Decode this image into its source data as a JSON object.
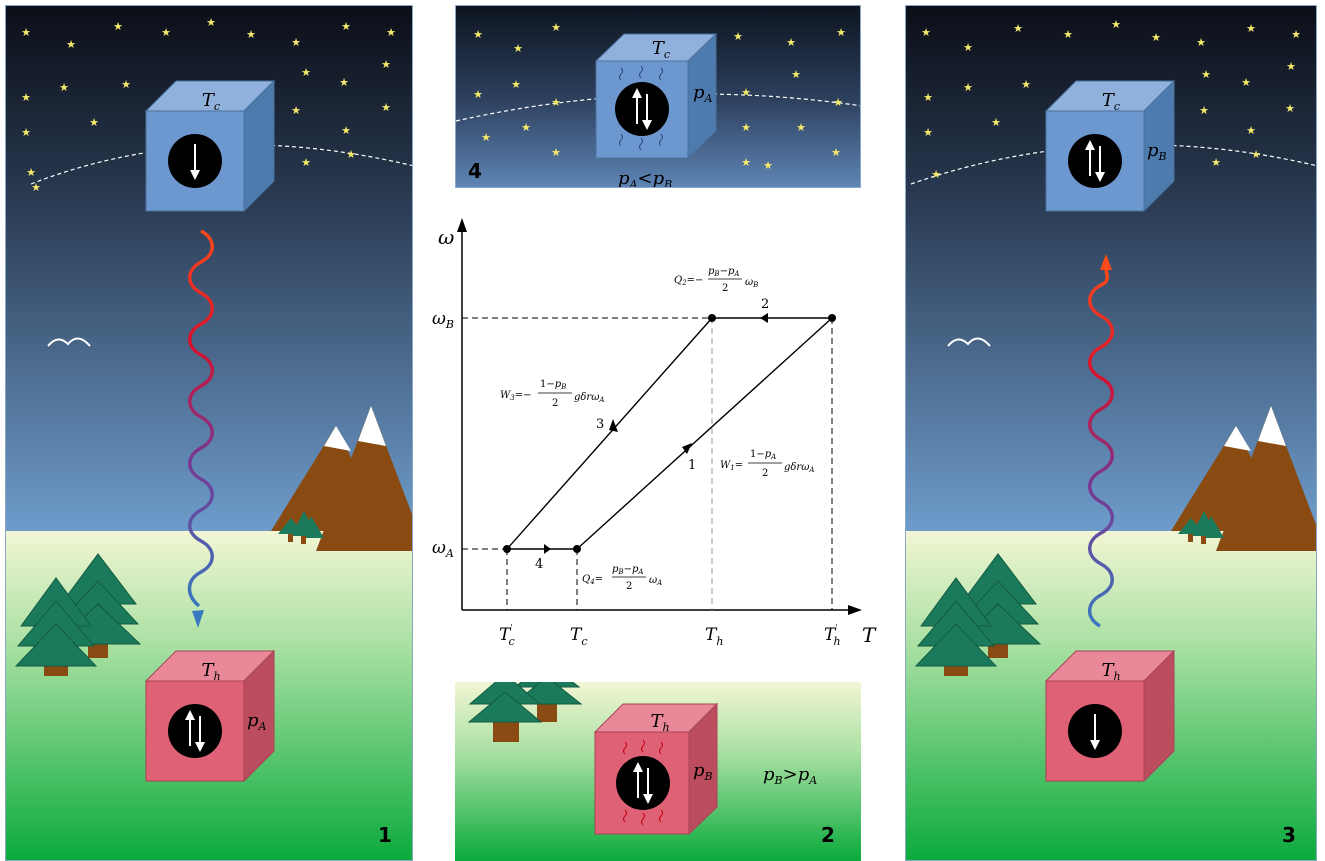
{
  "panels": {
    "p1": {
      "number": "1",
      "top_box": "T",
      "top_box_sub": "c",
      "bottom_box": "T",
      "bottom_box_sub": "h",
      "side_p": "p",
      "side_p_sub": "A"
    },
    "p2": {
      "number": "2",
      "box": "T",
      "box_sub": "h",
      "side_p": "p",
      "side_p_sub": "B",
      "relation_lhs": "p",
      "relation_lhs_sub": "B",
      "relation_op": ">",
      "relation_rhs": "p",
      "relation_rhs_sub": "A"
    },
    "p3": {
      "number": "3",
      "top_box": "T",
      "top_box_sub": "c",
      "bottom_box": "T",
      "bottom_box_sub": "h",
      "side_p": "p",
      "side_p_sub": "B"
    },
    "p4": {
      "number": "4",
      "box": "T",
      "box_sub": "c",
      "side_p": "p",
      "side_p_sub": "A",
      "relation_lhs": "p",
      "relation_lhs_sub": "A",
      "relation_op": "<",
      "relation_rhs": "p",
      "relation_rhs_sub": "B"
    }
  },
  "chart_data": {
    "type": "line",
    "xlabel": "T",
    "ylabel": "ω",
    "x_ticks": [
      {
        "main": "T",
        "sub": "c",
        "sup": "'"
      },
      {
        "main": "T",
        "sub": "c",
        "sup": ""
      },
      {
        "main": "T",
        "sub": "h",
        "sup": ""
      },
      {
        "main": "T",
        "sub": "h",
        "sup": "'"
      }
    ],
    "y_ticks": [
      {
        "main": "ω",
        "sub": "A"
      },
      {
        "main": "ω",
        "sub": "B"
      }
    ],
    "points": [
      {
        "x": "T'c",
        "y": "ωA"
      },
      {
        "x": "Tc",
        "y": "ωA"
      },
      {
        "x": "T'h",
        "y": "ωB"
      },
      {
        "x": "Th",
        "y": "ωB"
      }
    ],
    "legs": [
      {
        "label": "1",
        "from": "Tc,ωA",
        "to": "T'h,ωB"
      },
      {
        "label": "2",
        "from": "T'h,ωB",
        "to": "Th,ωB"
      },
      {
        "label": "3",
        "from": "Th,ωB",
        "to": "T'c,ωA"
      },
      {
        "label": "4",
        "from": "T'c,ωA",
        "to": "Tc,ωA"
      }
    ],
    "annotations": {
      "Q2": {
        "lhs": "Q",
        "lhs_sub": "2",
        "prefix": "=−",
        "num_a": "p",
        "num_a_sub": "B",
        "minus": "−",
        "num_b": "p",
        "num_b_sub": "A",
        "den": "2",
        "tail": "ω",
        "tail_sub": "B"
      },
      "Q4": {
        "lhs": "Q",
        "lhs_sub": "4",
        "prefix": "=",
        "num_a": "p",
        "num_a_sub": "B",
        "minus": "−",
        "num_b": "p",
        "num_b_sub": "A",
        "den": "2",
        "tail": "ω",
        "tail_sub": "A"
      },
      "W3": {
        "lhs": "W",
        "lhs_sub": "3",
        "prefix": "=−",
        "num_a": "1",
        "minus": "−",
        "num_b": "p",
        "num_b_sub": "B",
        "den": "2",
        "tail": "gδrω",
        "tail_sub": "A"
      },
      "W1": {
        "lhs": "W",
        "lhs_sub": "1",
        "prefix": "=",
        "num_a": "1",
        "minus": "−",
        "num_b": "p",
        "num_b_sub": "A",
        "den": "2",
        "tail": "gδrω",
        "tail_sub": "A"
      }
    }
  },
  "colors": {
    "sky_top": "#0b0e17",
    "sky_bottom": "#6e9ccb",
    "ground_top": "#f2f6d4",
    "ground_bottom": "#0aaa3c",
    "cold_box": "#6d98cf",
    "hot_box": "#df6175",
    "star": "#f5e96a",
    "tree": "#1c7a5c",
    "mountain": "#8a4b12"
  }
}
